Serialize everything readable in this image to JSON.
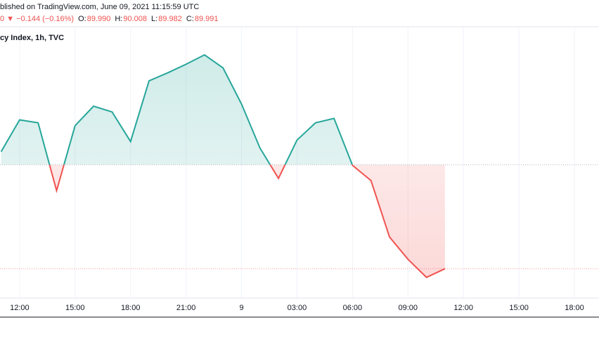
{
  "chart_data": {
    "type": "baseline",
    "published": "blished on TradingView.com, June 09, 2021 11:15:59 UTC",
    "change": "0 ▼ −0.144 (−0.16%)",
    "ohlc": [
      {
        "label": "O:",
        "value": "89.990"
      },
      {
        "label": "H:",
        "value": "90.008"
      },
      {
        "label": "L:",
        "value": "89.982"
      },
      {
        "label": "C:",
        "value": "89.991"
      }
    ],
    "title": "cy Index, 1h, TVC",
    "x": [
      11,
      12,
      13,
      14,
      15,
      16,
      17,
      18,
      19,
      20,
      21,
      22,
      23,
      24,
      25,
      26,
      27,
      28,
      29,
      30,
      31,
      32,
      33,
      34,
      35
    ],
    "values": [
      90.153,
      90.197,
      90.193,
      90.099,
      90.189,
      90.216,
      90.208,
      90.167,
      90.251,
      90.262,
      90.274,
      90.287,
      90.269,
      90.219,
      90.158,
      90.116,
      90.169,
      90.193,
      90.199,
      90.134,
      90.113,
      90.035,
      90.004,
      89.979,
      89.991
    ],
    "baseline": 90.135,
    "up_color": "#26a69a",
    "down_color": "#ef5350",
    "xlim": [
      10.94,
      43.33
    ],
    "ylim": [
      89.925,
      90.324
    ],
    "xticks": [
      {
        "value": 12,
        "label": "12:00"
      },
      {
        "value": 15,
        "label": "15:00"
      },
      {
        "value": 18,
        "label": "18:00"
      },
      {
        "value": 21,
        "label": "21:00"
      },
      {
        "value": 24,
        "label": "9"
      },
      {
        "value": 27,
        "label": "03:00"
      },
      {
        "value": 30,
        "label": "06:00"
      },
      {
        "value": 33,
        "label": "09:00"
      },
      {
        "value": 36,
        "label": "12:00"
      },
      {
        "value": 39,
        "label": "15:00"
      },
      {
        "value": 42,
        "label": "18:00"
      }
    ],
    "grid": true
  }
}
